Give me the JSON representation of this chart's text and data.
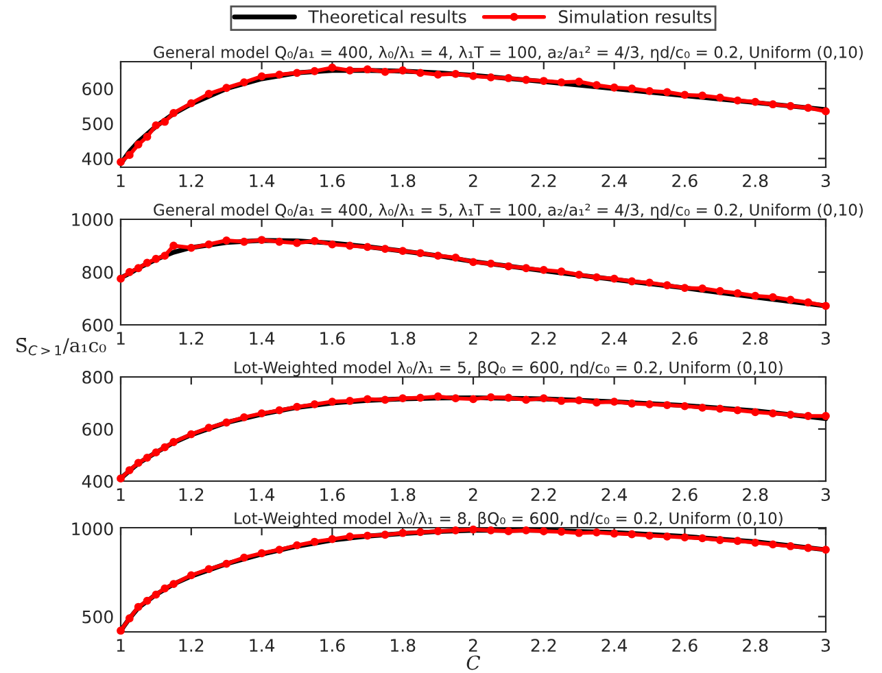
{
  "chart_data": [
    {
      "type": "line",
      "title": "General model Q₀/a₁ = 400, λ₀/λ₁ = 4, λ₁T = 100, a₂/a₁² = 4/3, ηd/c₀ = 0.2, Uniform (0,10)",
      "xlim": [
        1,
        3
      ],
      "xticks": [
        1,
        1.2,
        1.4,
        1.6,
        1.8,
        2,
        2.2,
        2.4,
        2.6,
        2.8,
        3
      ],
      "ylim": [
        375,
        677
      ],
      "yticks": [
        400,
        500,
        600
      ],
      "grid": false,
      "legend": "top",
      "series": [
        {
          "name": "Theoretical results",
          "color": "#000000",
          "marker": "none",
          "x": [
            1,
            1.025,
            1.05,
            1.1,
            1.15,
            1.2,
            1.3,
            1.4,
            1.5,
            1.6,
            1.7,
            1.8,
            1.9,
            2,
            2.2,
            2.4,
            2.6,
            2.8,
            3
          ],
          "values": [
            385,
            420,
            448,
            492,
            528,
            556,
            600,
            628,
            645,
            652,
            652,
            650,
            645,
            638,
            620,
            600,
            580,
            560,
            540
          ]
        },
        {
          "name": "Simulation results",
          "color": "#ff0000",
          "marker": "circle",
          "x": [
            1,
            1.025,
            1.05,
            1.075,
            1.1,
            1.125,
            1.15,
            1.2,
            1.25,
            1.3,
            1.35,
            1.4,
            1.45,
            1.5,
            1.55,
            1.6,
            1.65,
            1.7,
            1.75,
            1.8,
            1.85,
            1.9,
            1.95,
            2,
            2.05,
            2.1,
            2.15,
            2.2,
            2.25,
            2.3,
            2.35,
            2.4,
            2.45,
            2.5,
            2.55,
            2.6,
            2.65,
            2.7,
            2.75,
            2.8,
            2.85,
            2.9,
            2.95,
            3
          ],
          "values": [
            390,
            410,
            440,
            462,
            495,
            505,
            530,
            558,
            585,
            602,
            618,
            635,
            640,
            645,
            650,
            660,
            652,
            655,
            648,
            652,
            645,
            640,
            642,
            636,
            632,
            630,
            625,
            622,
            618,
            620,
            610,
            603,
            600,
            593,
            590,
            582,
            580,
            574,
            566,
            562,
            555,
            550,
            545,
            535
          ]
        }
      ]
    },
    {
      "type": "line",
      "title": "General model Q₀/a₁ = 400, λ₀/λ₁ = 5, λ₁T = 100, a₂/a₁² = 4/3, ηd/c₀ = 0.2, Uniform (0,10)",
      "xlim": [
        1,
        3
      ],
      "xticks": [
        1,
        1.2,
        1.4,
        1.6,
        1.8,
        2,
        2.2,
        2.4,
        2.6,
        2.8,
        3
      ],
      "ylim": [
        600,
        1000
      ],
      "yticks": [
        600,
        800,
        1000
      ],
      "grid": false,
      "series": [
        {
          "color": "#000000",
          "marker": "none",
          "x": [
            1,
            1.025,
            1.05,
            1.1,
            1.15,
            1.2,
            1.3,
            1.4,
            1.5,
            1.6,
            1.7,
            1.8,
            1.9,
            2,
            2.2,
            2.4,
            2.6,
            2.8,
            3
          ],
          "values": [
            778,
            795,
            815,
            848,
            875,
            893,
            912,
            920,
            918,
            910,
            896,
            880,
            862,
            840,
            805,
            772,
            740,
            705,
            672
          ]
        },
        {
          "color": "#ff0000",
          "marker": "circle",
          "x": [
            1,
            1.025,
            1.05,
            1.075,
            1.1,
            1.125,
            1.15,
            1.2,
            1.25,
            1.3,
            1.35,
            1.4,
            1.45,
            1.5,
            1.55,
            1.6,
            1.65,
            1.7,
            1.75,
            1.8,
            1.85,
            1.9,
            1.95,
            2,
            2.05,
            2.1,
            2.15,
            2.2,
            2.25,
            2.3,
            2.35,
            2.4,
            2.45,
            2.5,
            2.55,
            2.6,
            2.65,
            2.7,
            2.75,
            2.8,
            2.85,
            2.9,
            2.95,
            3
          ],
          "values": [
            775,
            800,
            815,
            835,
            850,
            862,
            900,
            892,
            905,
            920,
            915,
            922,
            915,
            910,
            918,
            905,
            900,
            895,
            888,
            880,
            872,
            862,
            855,
            838,
            832,
            822,
            815,
            808,
            802,
            790,
            780,
            775,
            765,
            760,
            750,
            740,
            738,
            728,
            720,
            710,
            705,
            695,
            685,
            672
          ]
        }
      ]
    },
    {
      "type": "line",
      "title": "Lot-Weighted model λ₀/λ₁ = 5, βQ₀ = 600, ηd/c₀ = 0.2, Uniform (0,10)",
      "ylabel": "S̄$_{C>1}$/a₁c₀",
      "xlim": [
        1,
        3
      ],
      "xticks": [
        1,
        1.2,
        1.4,
        1.6,
        1.8,
        2,
        2.2,
        2.4,
        2.6,
        2.8,
        3
      ],
      "ylim": [
        400,
        800
      ],
      "yticks": [
        400,
        600,
        800
      ],
      "grid": false,
      "series": [
        {
          "color": "#000000",
          "marker": "none",
          "x": [
            1,
            1.025,
            1.05,
            1.1,
            1.15,
            1.2,
            1.3,
            1.4,
            1.5,
            1.6,
            1.7,
            1.8,
            1.9,
            2,
            2.2,
            2.4,
            2.6,
            2.8,
            3
          ],
          "values": [
            410,
            440,
            468,
            510,
            548,
            578,
            625,
            657,
            683,
            700,
            710,
            716,
            719,
            720,
            716,
            705,
            690,
            670,
            640
          ]
        },
        {
          "color": "#ff0000",
          "marker": "circle",
          "x": [
            1,
            1.025,
            1.05,
            1.075,
            1.1,
            1.125,
            1.15,
            1.2,
            1.25,
            1.3,
            1.35,
            1.4,
            1.45,
            1.5,
            1.55,
            1.6,
            1.65,
            1.7,
            1.75,
            1.8,
            1.85,
            1.9,
            1.95,
            2,
            2.05,
            2.1,
            2.15,
            2.2,
            2.25,
            2.3,
            2.35,
            2.4,
            2.45,
            2.5,
            2.55,
            2.6,
            2.65,
            2.7,
            2.75,
            2.8,
            2.85,
            2.9,
            2.95,
            3
          ],
          "values": [
            410,
            442,
            470,
            490,
            510,
            530,
            550,
            580,
            605,
            625,
            645,
            660,
            672,
            685,
            695,
            705,
            708,
            715,
            712,
            718,
            720,
            725,
            718,
            715,
            722,
            720,
            712,
            718,
            708,
            710,
            702,
            705,
            698,
            695,
            692,
            688,
            682,
            678,
            672,
            665,
            660,
            655,
            650,
            650
          ]
        }
      ]
    },
    {
      "type": "line",
      "title": "Lot-Weighted model λ₀/λ₁ = 8, βQ₀ = 600, ηd/c₀ = 0.2, Uniform (0,10)",
      "xlabel": "C",
      "xlim": [
        1,
        3
      ],
      "xticks": [
        1,
        1.2,
        1.4,
        1.6,
        1.8,
        2,
        2.2,
        2.4,
        2.6,
        2.8,
        3
      ],
      "ylim": [
        413,
        1005
      ],
      "yticks": [
        500,
        1000
      ],
      "grid": false,
      "series": [
        {
          "color": "#000000",
          "marker": "none",
          "x": [
            1,
            1.025,
            1.05,
            1.1,
            1.15,
            1.2,
            1.3,
            1.4,
            1.5,
            1.6,
            1.7,
            1.8,
            1.9,
            2,
            2.2,
            2.4,
            2.6,
            2.8,
            3
          ],
          "values": [
            420,
            490,
            550,
            625,
            685,
            730,
            800,
            855,
            900,
            935,
            957,
            972,
            983,
            990,
            990,
            978,
            955,
            925,
            880
          ]
        },
        {
          "color": "#ff0000",
          "marker": "circle",
          "x": [
            1,
            1.025,
            1.05,
            1.075,
            1.1,
            1.125,
            1.15,
            1.2,
            1.25,
            1.3,
            1.35,
            1.4,
            1.45,
            1.5,
            1.55,
            1.6,
            1.65,
            1.7,
            1.75,
            1.8,
            1.85,
            1.9,
            1.95,
            2,
            2.05,
            2.1,
            2.15,
            2.2,
            2.25,
            2.3,
            2.35,
            2.4,
            2.45,
            2.5,
            2.55,
            2.6,
            2.65,
            2.7,
            2.75,
            2.8,
            2.85,
            2.9,
            2.95,
            3
          ],
          "values": [
            420,
            490,
            555,
            590,
            625,
            660,
            685,
            735,
            770,
            800,
            835,
            860,
            880,
            905,
            925,
            940,
            955,
            960,
            965,
            975,
            980,
            985,
            990,
            995,
            990,
            985,
            990,
            985,
            982,
            975,
            978,
            972,
            968,
            960,
            955,
            950,
            945,
            935,
            930,
            920,
            910,
            900,
            890,
            880
          ]
        }
      ]
    }
  ]
}
